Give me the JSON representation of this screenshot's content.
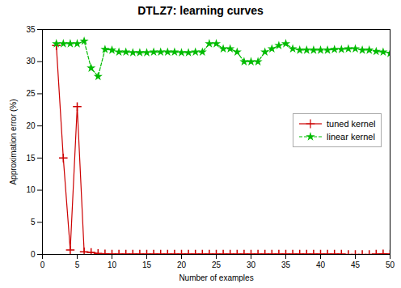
{
  "chart_data": {
    "type": "line",
    "title": "DTLZ7: learning curves",
    "xlabel": "Number of examples",
    "ylabel": "Approximation error (%)",
    "xlim": [
      0,
      50
    ],
    "ylim": [
      0,
      35
    ],
    "xticks": [
      0,
      5,
      10,
      15,
      20,
      25,
      30,
      35,
      40,
      45,
      50
    ],
    "yticks": [
      0,
      5,
      10,
      15,
      20,
      25,
      30,
      35
    ],
    "grid": false,
    "legend": "right",
    "x": [
      2,
      3,
      4,
      5,
      6,
      7,
      8,
      9,
      10,
      11,
      12,
      13,
      14,
      15,
      16,
      17,
      18,
      19,
      20,
      21,
      22,
      23,
      24,
      25,
      26,
      27,
      28,
      29,
      30,
      31,
      32,
      33,
      34,
      35,
      36,
      37,
      38,
      39,
      40,
      41,
      42,
      43,
      44,
      45,
      46,
      47,
      48,
      49,
      50
    ],
    "series": [
      {
        "name": "tuned kernel",
        "color": "#cc0000",
        "marker": "plus",
        "line_style": "solid",
        "values": [
          32.5,
          15.0,
          0.7,
          23.0,
          0.4,
          0.3,
          0.15,
          0.1,
          0.05,
          0.05,
          0.05,
          0.05,
          0.05,
          0.05,
          0.05,
          0.05,
          0.05,
          0.05,
          0.05,
          0.05,
          0.05,
          0.05,
          0.05,
          0.05,
          0.05,
          0.05,
          0.05,
          0.05,
          0.05,
          0.05,
          0.05,
          0.05,
          0.05,
          0.05,
          0.05,
          0.05,
          0.05,
          0.05,
          0.05,
          0.05,
          0.05,
          0.05,
          0.0,
          0.0,
          0.0,
          0.0,
          0.05,
          0.1,
          0.05
        ]
      },
      {
        "name": "linear kernel",
        "color": "#00bb00",
        "marker": "star",
        "line_style": "dashed",
        "values": [
          32.8,
          32.8,
          32.8,
          32.8,
          33.2,
          29.0,
          27.7,
          31.9,
          31.8,
          31.5,
          31.5,
          31.4,
          31.4,
          31.4,
          31.5,
          31.5,
          31.5,
          31.5,
          31.4,
          31.4,
          31.5,
          31.5,
          32.8,
          32.8,
          32.0,
          32.0,
          31.5,
          30.0,
          30.0,
          30.0,
          31.5,
          32.0,
          32.5,
          32.8,
          32.0,
          31.8,
          31.8,
          31.8,
          31.8,
          31.8,
          31.9,
          31.9,
          32.0,
          32.0,
          31.8,
          31.8,
          31.6,
          31.5,
          31.3
        ]
      }
    ]
  }
}
